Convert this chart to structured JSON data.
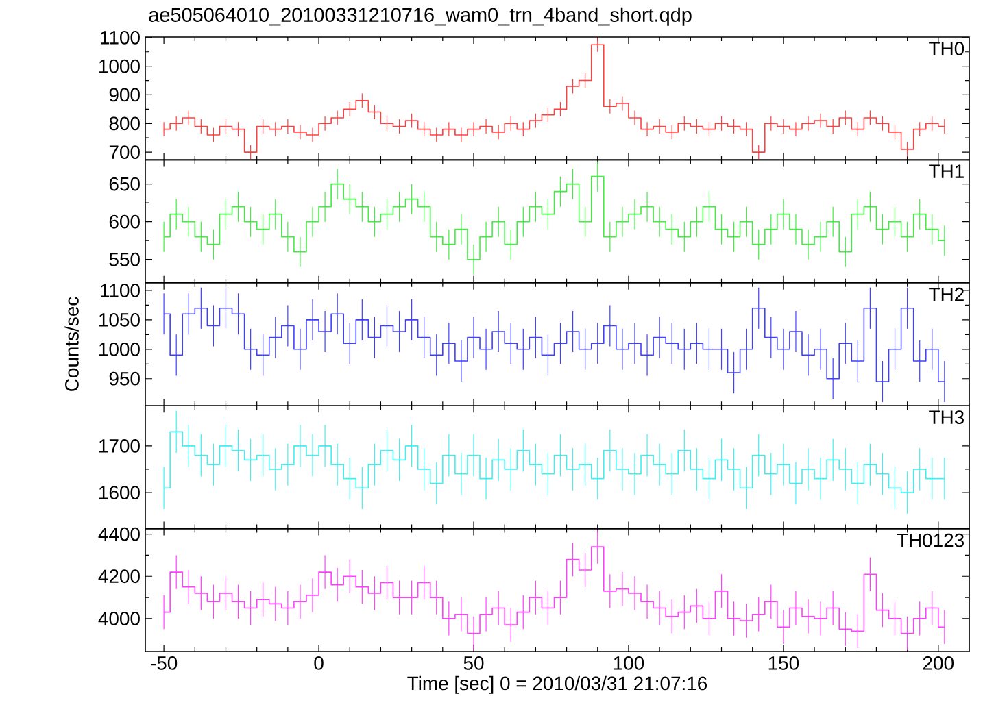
{
  "chart_data": [
    {
      "type": "step",
      "title": "ae505064010_20100331210716_wam0_trn_4band_short.qdp",
      "annotations": [
        "TH0"
      ],
      "tick_labels": "y",
      "xlim": [
        -56,
        210
      ],
      "xticks": [
        -50,
        0,
        50,
        100,
        150,
        200
      ],
      "ylim": [
        673,
        1102
      ],
      "yticks": [
        700,
        800,
        900,
        1000,
        1100
      ],
      "x": [
        -50,
        -46,
        -42,
        -38,
        -34,
        -30,
        -26,
        -22,
        -18,
        -14,
        -10,
        -6,
        -2,
        2,
        6,
        10,
        14,
        18,
        22,
        26,
        30,
        34,
        38,
        42,
        46,
        50,
        54,
        58,
        62,
        66,
        70,
        74,
        78,
        82,
        86,
        90,
        94,
        98,
        102,
        106,
        110,
        114,
        118,
        122,
        126,
        130,
        134,
        138,
        142,
        146,
        150,
        154,
        158,
        162,
        166,
        170,
        174,
        178,
        182,
        186,
        190,
        194,
        198,
        202
      ],
      "series": [
        {
          "color": "#ff4040",
          "values": [
            780,
            800,
            820,
            790,
            760,
            790,
            780,
            700,
            790,
            780,
            790,
            770,
            760,
            800,
            820,
            850,
            880,
            840,
            800,
            790,
            810,
            780,
            760,
            780,
            760,
            780,
            790,
            770,
            800,
            780,
            810,
            830,
            850,
            930,
            950,
            1075,
            860,
            870,
            820,
            780,
            790,
            770,
            800,
            790,
            780,
            800,
            790,
            780,
            700,
            800,
            790,
            780,
            800,
            810,
            790,
            820,
            780,
            820,
            800,
            770,
            710,
            780,
            800,
            790
          ],
          "errors": [
            25,
            25,
            25,
            25,
            25,
            25,
            25,
            25,
            25,
            25,
            25,
            25,
            25,
            25,
            25,
            25,
            25,
            25,
            25,
            25,
            25,
            25,
            25,
            25,
            25,
            25,
            25,
            25,
            25,
            25,
            25,
            25,
            25,
            25,
            25,
            25,
            25,
            25,
            25,
            25,
            25,
            25,
            25,
            25,
            25,
            25,
            25,
            25,
            25,
            25,
            25,
            25,
            25,
            25,
            25,
            25,
            25,
            25,
            25,
            25,
            25,
            25,
            25,
            25
          ]
        }
      ]
    },
    {
      "type": "step",
      "annotations": [
        "TH1"
      ],
      "tick_labels": "y",
      "xlim": [
        -56,
        210
      ],
      "xticks": [
        -50,
        0,
        50,
        100,
        150,
        200
      ],
      "ylim": [
        519,
        682
      ],
      "yticks": [
        550,
        600,
        650
      ],
      "x": [
        -50,
        -46,
        -42,
        -38,
        -34,
        -30,
        -26,
        -22,
        -18,
        -14,
        -10,
        -6,
        -2,
        2,
        6,
        10,
        14,
        18,
        22,
        26,
        30,
        34,
        38,
        42,
        46,
        50,
        54,
        58,
        62,
        66,
        70,
        74,
        78,
        82,
        86,
        90,
        94,
        98,
        102,
        106,
        110,
        114,
        118,
        122,
        126,
        130,
        134,
        138,
        142,
        146,
        150,
        154,
        158,
        162,
        166,
        170,
        174,
        178,
        182,
        186,
        190,
        194,
        198,
        202
      ],
      "series": [
        {
          "color": "#40ee40",
          "values": [
            580,
            610,
            600,
            580,
            570,
            610,
            620,
            600,
            590,
            610,
            580,
            560,
            600,
            620,
            650,
            630,
            620,
            600,
            610,
            620,
            630,
            620,
            580,
            570,
            590,
            550,
            580,
            600,
            570,
            600,
            620,
            610,
            640,
            650,
            600,
            660,
            580,
            600,
            610,
            620,
            600,
            590,
            580,
            600,
            620,
            590,
            580,
            600,
            570,
            590,
            610,
            590,
            570,
            580,
            600,
            560,
            610,
            620,
            590,
            600,
            580,
            610,
            590,
            575
          ],
          "errors": [
            20,
            20,
            20,
            20,
            20,
            20,
            20,
            20,
            20,
            20,
            20,
            20,
            20,
            20,
            20,
            20,
            20,
            20,
            20,
            20,
            20,
            20,
            20,
            20,
            20,
            20,
            20,
            20,
            20,
            20,
            20,
            20,
            20,
            20,
            20,
            20,
            20,
            20,
            20,
            20,
            20,
            20,
            20,
            20,
            20,
            20,
            20,
            20,
            20,
            20,
            20,
            20,
            20,
            20,
            20,
            20,
            20,
            20,
            20,
            20,
            20,
            20,
            20,
            20
          ]
        }
      ]
    },
    {
      "type": "step",
      "annotations": [
        "TH2"
      ],
      "ylabel": "Counts/sec",
      "tick_labels": "y",
      "xlim": [
        -56,
        210
      ],
      "xticks": [
        -50,
        0,
        50,
        100,
        150,
        200
      ],
      "ylim": [
        904,
        1113
      ],
      "yticks": [
        950,
        1000,
        1050,
        1100
      ],
      "x": [
        -50,
        -46,
        -42,
        -38,
        -34,
        -30,
        -26,
        -22,
        -18,
        -14,
        -10,
        -6,
        -2,
        2,
        6,
        10,
        14,
        18,
        22,
        26,
        30,
        34,
        38,
        42,
        46,
        50,
        54,
        58,
        62,
        66,
        70,
        74,
        78,
        82,
        86,
        90,
        94,
        98,
        102,
        106,
        110,
        114,
        118,
        122,
        126,
        130,
        134,
        138,
        142,
        146,
        150,
        154,
        158,
        162,
        166,
        170,
        174,
        178,
        182,
        186,
        190,
        194,
        198,
        202
      ],
      "series": [
        {
          "color": "#4040ff",
          "values": [
            1060,
            990,
            1060,
            1070,
            1040,
            1070,
            1060,
            1000,
            990,
            1020,
            1040,
            1000,
            1050,
            1030,
            1060,
            1010,
            1050,
            1020,
            1040,
            1030,
            1050,
            1020,
            990,
            1010,
            980,
            1020,
            1000,
            1030,
            1010,
            1000,
            1020,
            990,
            1010,
            1030,
            1000,
            1010,
            1040,
            1000,
            1010,
            990,
            1020,
            1010,
            1000,
            1010,
            1000,
            1000,
            960,
            1000,
            1070,
            1020,
            1000,
            1030,
            990,
            1000,
            950,
            1010,
            980,
            1070,
            945,
            1000,
            1070,
            980,
            1000,
            945
          ],
          "errors": [
            35,
            35,
            35,
            35,
            35,
            35,
            35,
            35,
            35,
            35,
            35,
            35,
            35,
            35,
            35,
            35,
            35,
            35,
            35,
            35,
            35,
            35,
            35,
            35,
            35,
            35,
            35,
            35,
            35,
            35,
            35,
            35,
            35,
            35,
            35,
            35,
            35,
            35,
            35,
            35,
            35,
            35,
            35,
            35,
            35,
            35,
            35,
            35,
            35,
            35,
            35,
            35,
            35,
            35,
            35,
            35,
            35,
            35,
            35,
            35,
            35,
            35,
            35,
            35
          ]
        }
      ]
    },
    {
      "type": "step",
      "annotations": [
        "TH3"
      ],
      "tick_labels": "y",
      "xlim": [
        -56,
        210
      ],
      "xticks": [
        -50,
        0,
        50,
        100,
        150,
        200
      ],
      "ylim": [
        1523,
        1786
      ],
      "yticks": [
        1600,
        1700
      ],
      "x": [
        -50,
        -46,
        -42,
        -38,
        -34,
        -30,
        -26,
        -22,
        -18,
        -14,
        -10,
        -6,
        -2,
        2,
        6,
        10,
        14,
        18,
        22,
        26,
        30,
        34,
        38,
        42,
        46,
        50,
        54,
        58,
        62,
        66,
        70,
        74,
        78,
        82,
        86,
        90,
        94,
        98,
        102,
        106,
        110,
        114,
        118,
        122,
        126,
        130,
        134,
        138,
        142,
        146,
        150,
        154,
        158,
        162,
        166,
        170,
        174,
        178,
        182,
        186,
        190,
        194,
        198,
        202
      ],
      "series": [
        {
          "color": "#40f0f0",
          "values": [
            1610,
            1730,
            1700,
            1680,
            1660,
            1700,
            1690,
            1670,
            1680,
            1650,
            1660,
            1700,
            1680,
            1700,
            1660,
            1630,
            1610,
            1660,
            1690,
            1670,
            1700,
            1650,
            1620,
            1680,
            1640,
            1680,
            1630,
            1670,
            1650,
            1690,
            1660,
            1640,
            1680,
            1650,
            1660,
            1630,
            1690,
            1650,
            1640,
            1680,
            1660,
            1640,
            1690,
            1650,
            1630,
            1670,
            1650,
            1610,
            1680,
            1640,
            1660,
            1620,
            1650,
            1630,
            1670,
            1650,
            1620,
            1660,
            1640,
            1610,
            1600,
            1650,
            1630,
            1630
          ],
          "errors": [
            45,
            45,
            45,
            45,
            45,
            45,
            45,
            45,
            45,
            45,
            45,
            45,
            45,
            45,
            45,
            45,
            45,
            45,
            45,
            45,
            45,
            45,
            45,
            45,
            45,
            45,
            45,
            45,
            45,
            45,
            45,
            45,
            45,
            45,
            45,
            45,
            45,
            45,
            45,
            45,
            45,
            45,
            45,
            45,
            45,
            45,
            45,
            45,
            45,
            45,
            45,
            45,
            45,
            45,
            45,
            45,
            45,
            45,
            45,
            45,
            45,
            45,
            45,
            45
          ]
        }
      ]
    },
    {
      "type": "step",
      "annotations": [
        "TH0123"
      ],
      "xlabel": "Time [sec] 0 = 2010/03/31 21:07:16",
      "xlim": [
        -56,
        210
      ],
      "xticks": [
        -50,
        0,
        50,
        100,
        150,
        200
      ],
      "ylim": [
        3844,
        4426
      ],
      "yticks": [
        4000,
        4200,
        4400
      ],
      "x": [
        -50,
        -46,
        -42,
        -38,
        -34,
        -30,
        -26,
        -22,
        -18,
        -14,
        -10,
        -6,
        -2,
        2,
        6,
        10,
        14,
        18,
        22,
        26,
        30,
        34,
        38,
        42,
        46,
        50,
        54,
        58,
        62,
        66,
        70,
        74,
        78,
        82,
        86,
        90,
        94,
        98,
        102,
        106,
        110,
        114,
        118,
        122,
        126,
        130,
        134,
        138,
        142,
        146,
        150,
        154,
        158,
        162,
        166,
        170,
        174,
        178,
        182,
        186,
        190,
        194,
        198,
        202
      ],
      "series": [
        {
          "color": "#ff40ff",
          "values": [
            4030,
            4220,
            4150,
            4120,
            4080,
            4120,
            4080,
            4050,
            4090,
            4070,
            4050,
            4080,
            4110,
            4220,
            4160,
            4200,
            4150,
            4120,
            4170,
            4100,
            4100,
            4170,
            4100,
            4000,
            4020,
            3930,
            4020,
            4050,
            3970,
            4030,
            4100,
            4050,
            4100,
            4280,
            4230,
            4340,
            4130,
            4140,
            4120,
            4080,
            4050,
            4010,
            4030,
            4060,
            4000,
            4130,
            4000,
            3990,
            4020,
            4080,
            3960,
            4050,
            4010,
            4000,
            4050,
            3950,
            3940,
            4210,
            4040,
            4000,
            3930,
            4000,
            4050,
            3960
          ],
          "errors": [
            80,
            80,
            80,
            80,
            80,
            80,
            80,
            80,
            80,
            80,
            80,
            80,
            80,
            80,
            80,
            80,
            80,
            80,
            80,
            80,
            80,
            80,
            80,
            80,
            80,
            80,
            80,
            80,
            80,
            80,
            80,
            80,
            80,
            80,
            80,
            80,
            80,
            80,
            80,
            80,
            80,
            80,
            80,
            80,
            80,
            80,
            80,
            80,
            80,
            80,
            80,
            80,
            80,
            80,
            80,
            80,
            80,
            80,
            80,
            80,
            80,
            80,
            80,
            80
          ]
        }
      ]
    }
  ]
}
